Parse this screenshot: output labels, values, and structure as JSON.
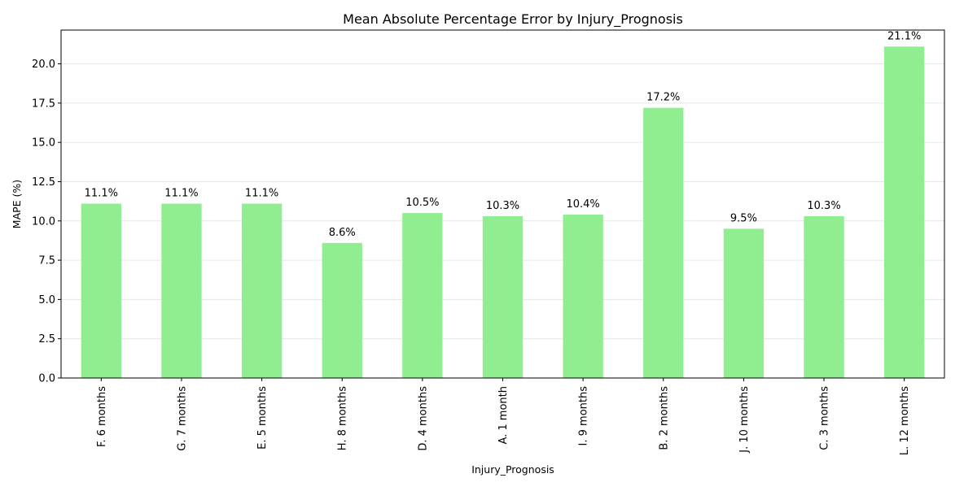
{
  "chart_data": {
    "type": "bar",
    "title": "Mean Absolute Percentage Error by Injury_Prognosis",
    "xlabel": "Injury_Prognosis",
    "ylabel": "MAPE (%)",
    "categories": [
      "F. 6 months",
      "G. 7 months",
      "E. 5 months",
      "H. 8 months",
      "D. 4 months",
      "A. 1 month",
      "I. 9 months",
      "B. 2 months",
      "J. 10 months",
      "C. 3 months",
      "L. 12 months"
    ],
    "values": [
      11.1,
      11.1,
      11.1,
      8.6,
      10.5,
      10.3,
      10.4,
      17.2,
      9.5,
      10.3,
      21.1
    ],
    "data_labels": [
      "11.1%",
      "11.1%",
      "11.1%",
      "8.6%",
      "10.5%",
      "10.3%",
      "10.4%",
      "17.2%",
      "9.5%",
      "10.3%",
      "21.1%"
    ],
    "ylim": [
      0,
      22.15
    ],
    "yticks": [
      0,
      2.5,
      5,
      7.5,
      10,
      12.5,
      15,
      17.5,
      20
    ],
    "ytick_labels": [
      "0.0",
      "2.5",
      "5.0",
      "7.5",
      "10.0",
      "12.5",
      "15.0",
      "17.5",
      "20.0"
    ],
    "grid": "horizontal",
    "legend": "none",
    "colors": {
      "bar": "#90ee90",
      "grid": "#e6e6e6",
      "axis": "#000000"
    }
  }
}
